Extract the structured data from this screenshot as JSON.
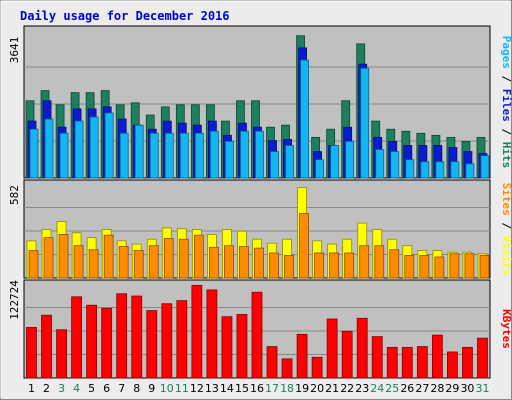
{
  "chart_data": [
    {
      "type": "bar",
      "title": "Daily usage for December 2016",
      "ylabel_left": "3641",
      "ylabel_right_parts": [
        "Pages",
        "Files",
        "Hits"
      ],
      "ymax": 3641,
      "categories": [
        "1",
        "2",
        "3",
        "4",
        "5",
        "6",
        "7",
        "8",
        "9",
        "10",
        "11",
        "12",
        "13",
        "14",
        "15",
        "16",
        "17",
        "18",
        "19",
        "20",
        "21",
        "22",
        "23",
        "24",
        "25",
        "26",
        "27",
        "28",
        "29",
        "30",
        "31"
      ],
      "weekend_days": [
        "3",
        "4",
        "10",
        "11",
        "17",
        "18",
        "24",
        "25",
        "31"
      ],
      "series": [
        {
          "name": "Hits",
          "values": [
            1900,
            2150,
            1800,
            2100,
            2100,
            2150,
            1800,
            1850,
            1550,
            1750,
            1800,
            1800,
            1800,
            1400,
            1900,
            1900,
            1250,
            1300,
            3500,
            1000,
            1200,
            1900,
            3300,
            1400,
            1200,
            1150,
            1100,
            1050,
            1000,
            900,
            1000
          ]
        },
        {
          "name": "Files",
          "values": [
            1400,
            1900,
            1250,
            1700,
            1700,
            1750,
            1450,
            1300,
            1200,
            1400,
            1350,
            1300,
            1400,
            1050,
            1350,
            1250,
            920,
            950,
            3200,
            650,
            800,
            1250,
            2800,
            1000,
            900,
            800,
            800,
            800,
            750,
            650,
            600
          ]
        },
        {
          "name": "Pages",
          "values": [
            1200,
            1450,
            1100,
            1400,
            1500,
            1600,
            1100,
            1300,
            1100,
            1100,
            1100,
            1100,
            1150,
            900,
            1150,
            1150,
            650,
            800,
            2900,
            450,
            800,
            900,
            2700,
            700,
            650,
            450,
            400,
            400,
            400,
            350,
            550
          ]
        }
      ],
      "colors": {
        "Hits": "#1c7f5e",
        "Files": "#0b1cd0",
        "Pages": "#12b6f2"
      }
    },
    {
      "type": "bar",
      "ylabel_left": "582",
      "ylabel_right_parts": [
        "Sites",
        "Visits"
      ],
      "ymax": 582,
      "categories": [
        "1",
        "2",
        "3",
        "4",
        "5",
        "6",
        "7",
        "8",
        "9",
        "10",
        "11",
        "12",
        "13",
        "14",
        "15",
        "16",
        "17",
        "18",
        "19",
        "20",
        "21",
        "22",
        "23",
        "24",
        "25",
        "26",
        "27",
        "28",
        "29",
        "30",
        "31"
      ],
      "series": [
        {
          "name": "Visits",
          "values": [
            230,
            300,
            350,
            280,
            250,
            300,
            230,
            210,
            240,
            310,
            305,
            300,
            270,
            300,
            290,
            240,
            215,
            240,
            560,
            230,
            210,
            240,
            340,
            300,
            240,
            200,
            170,
            170,
            160,
            160,
            150
          ]
        },
        {
          "name": "Sites",
          "values": [
            170,
            250,
            270,
            200,
            175,
            265,
            195,
            170,
            200,
            245,
            240,
            265,
            190,
            200,
            195,
            185,
            155,
            140,
            400,
            155,
            155,
            155,
            200,
            200,
            175,
            140,
            140,
            130,
            150,
            150,
            140
          ]
        }
      ],
      "colors": {
        "Visits": "#ffff00",
        "Sites": "#ff8c00"
      }
    },
    {
      "type": "bar",
      "ylabel_left": "122724",
      "ylabel_right_parts": [
        "KBytes"
      ],
      "ymax": 122724,
      "categories": [
        "1",
        "2",
        "3",
        "4",
        "5",
        "6",
        "7",
        "8",
        "9",
        "10",
        "11",
        "12",
        "13",
        "14",
        "15",
        "16",
        "17",
        "18",
        "19",
        "20",
        "21",
        "22",
        "23",
        "24",
        "25",
        "26",
        "27",
        "28",
        "29",
        "30",
        "31"
      ],
      "series": [
        {
          "name": "KBytes",
          "values": [
            66000,
            82000,
            63000,
            106000,
            95000,
            91000,
            110000,
            107000,
            88000,
            97000,
            101000,
            121000,
            115000,
            80000,
            83000,
            112000,
            41000,
            25000,
            57000,
            27000,
            77000,
            61000,
            78000,
            54000,
            40000,
            40000,
            41000,
            56000,
            34000,
            40000,
            52000
          ]
        }
      ],
      "colors": {
        "KBytes": "#ff0000"
      }
    }
  ]
}
